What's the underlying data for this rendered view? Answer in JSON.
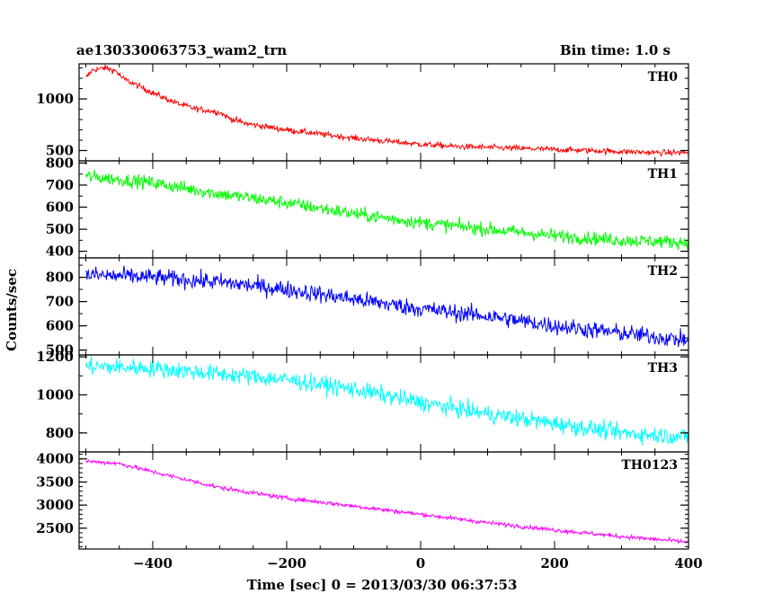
{
  "header": {
    "title": "ae130330063753_wam2_trn",
    "bin_time": "Bin time: 1.0 s"
  },
  "axes": {
    "xlabel": "Time [sec] 0 = 2013/03/30 06:37:53",
    "ylabel": "Counts/sec",
    "x_ticks": [
      "−400",
      "−200",
      "0",
      "200",
      "400"
    ]
  },
  "chart_data": {
    "type": "line",
    "x_range": [
      -510,
      400
    ],
    "x_major_ticks": [
      -400,
      -200,
      0,
      200,
      400
    ],
    "x_minor_step": 50,
    "series": [
      {
        "name": "TH0",
        "color": "#ff0000",
        "ylim": [
          400,
          1340
        ],
        "y_ticks": [
          500,
          1000
        ],
        "y_tick_labels": [
          "500",
          "1000"
        ],
        "y_minor_step": 100,
        "noise": 28,
        "x": [
          -500,
          -490,
          -470,
          -455,
          -445,
          -420,
          -400,
          -380,
          -360,
          -340,
          -320,
          -300,
          -285,
          -260,
          -240,
          -220,
          -200,
          -150,
          -100,
          -50,
          0,
          50,
          100,
          150,
          200,
          250,
          300,
          350,
          400
        ],
        "y": [
          1200,
          1280,
          1300,
          1270,
          1200,
          1120,
          1060,
          1000,
          950,
          910,
          890,
          870,
          810,
          760,
          740,
          720,
          700,
          660,
          620,
          590,
          560,
          540,
          530,
          520,
          510,
          500,
          490,
          480,
          480
        ]
      },
      {
        "name": "TH1",
        "color": "#00ff00",
        "ylim": [
          370,
          810
        ],
        "y_ticks": [
          400,
          500,
          600,
          700,
          800
        ],
        "y_tick_labels": [
          "400",
          "500",
          "600",
          "700",
          "800"
        ],
        "y_minor_step": 50,
        "noise": 30,
        "x": [
          -500,
          -400,
          -300,
          -200,
          -100,
          0,
          100,
          200,
          300,
          400
        ],
        "y": [
          740,
          710,
          660,
          620,
          570,
          530,
          500,
          470,
          450,
          440
        ]
      },
      {
        "name": "TH2",
        "color": "#0000ff",
        "ylim": [
          480,
          880
        ],
        "y_ticks": [
          500,
          600,
          700,
          800
        ],
        "y_tick_labels": [
          "500",
          "600",
          "700",
          "800"
        ],
        "y_minor_step": 50,
        "noise": 35,
        "x": [
          -500,
          -400,
          -300,
          -200,
          -100,
          0,
          100,
          200,
          300,
          400
        ],
        "y": [
          810,
          800,
          780,
          750,
          710,
          670,
          640,
          600,
          570,
          540
        ]
      },
      {
        "name": "TH3",
        "color": "#00ffff",
        "ylim": [
          700,
          1210
        ],
        "y_ticks": [
          800,
          1000,
          1200
        ],
        "y_tick_labels": [
          "800",
          "1000",
          "1200"
        ],
        "y_minor_step": 100,
        "noise": 45,
        "x": [
          -500,
          -400,
          -300,
          -200,
          -100,
          0,
          100,
          200,
          300,
          400
        ],
        "y": [
          1150,
          1140,
          1110,
          1080,
          1030,
          960,
          900,
          850,
          800,
          780
        ]
      },
      {
        "name": "TH0123",
        "color": "#ff00ff",
        "ylim": [
          2050,
          4150
        ],
        "y_ticks": [
          2500,
          3000,
          3500,
          4000
        ],
        "y_tick_labels": [
          "2500",
          "3000",
          "3500",
          "4000"
        ],
        "y_minor_step": 100,
        "noise": 45,
        "x": [
          -500,
          -450,
          -400,
          -300,
          -200,
          -100,
          0,
          100,
          200,
          300,
          400
        ],
        "y": [
          3950,
          3900,
          3720,
          3380,
          3150,
          2980,
          2800,
          2620,
          2460,
          2320,
          2200
        ]
      }
    ],
    "grid": false,
    "legend": "none"
  }
}
